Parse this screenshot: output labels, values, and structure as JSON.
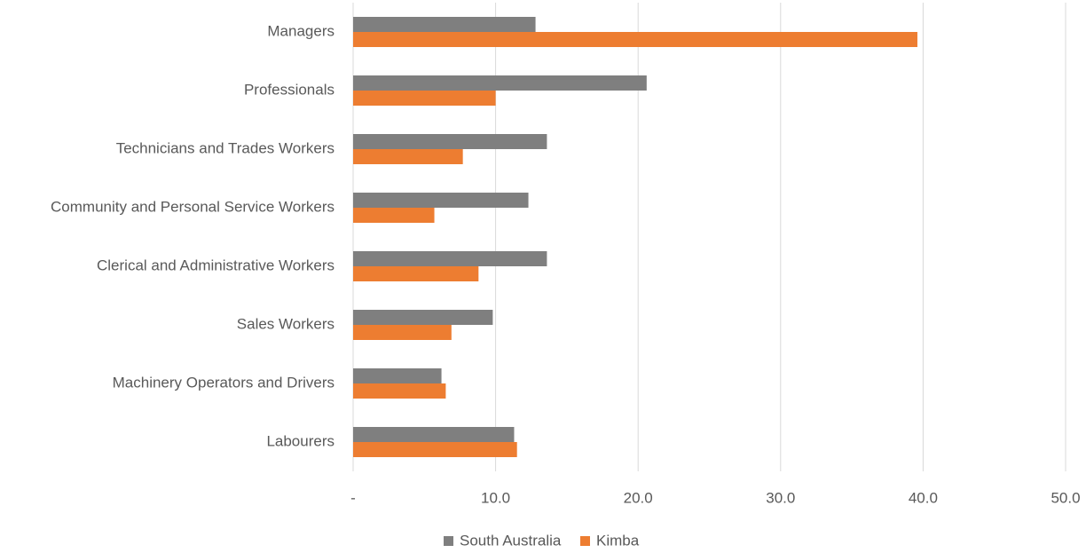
{
  "chart_data": {
    "type": "barh",
    "categories": [
      "Managers",
      "Professionals",
      "Technicians and Trades Workers",
      "Community and Personal Service Workers",
      "Clerical and Administrative Workers",
      "Sales Workers",
      "Machinery Operators and Drivers",
      "Labourers"
    ],
    "series": [
      {
        "name": "South Australia",
        "color": "#7f7f7f",
        "values": [
          12.8,
          20.6,
          13.6,
          12.3,
          13.6,
          9.8,
          6.2,
          11.3
        ]
      },
      {
        "name": "Kimba",
        "color": "#ed7d31",
        "values": [
          39.6,
          10.0,
          7.7,
          5.7,
          8.8,
          6.9,
          6.5,
          11.5
        ]
      }
    ],
    "xlim": [
      0,
      50
    ],
    "xticks": [
      {
        "value": 0,
        "label": "-"
      },
      {
        "value": 10,
        "label": "10.0"
      },
      {
        "value": 20,
        "label": "20.0"
      },
      {
        "value": 30,
        "label": "30.0"
      },
      {
        "value": 40,
        "label": "40.0"
      },
      {
        "value": 50,
        "label": "50.0"
      }
    ],
    "grid": true,
    "legend": "bottom"
  }
}
